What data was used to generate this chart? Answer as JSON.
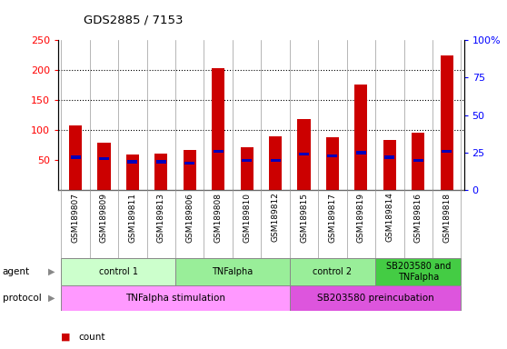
{
  "title": "GDS2885 / 7153",
  "samples": [
    "GSM189807",
    "GSM189809",
    "GSM189811",
    "GSM189813",
    "GSM189806",
    "GSM189808",
    "GSM189810",
    "GSM189812",
    "GSM189815",
    "GSM189817",
    "GSM189819",
    "GSM189814",
    "GSM189816",
    "GSM189818"
  ],
  "count_values": [
    108,
    79,
    59,
    61,
    67,
    204,
    71,
    89,
    118,
    88,
    176,
    83,
    96,
    224
  ],
  "percentile_values": [
    22,
    21,
    19,
    19,
    18,
    26,
    20,
    20,
    24,
    23,
    25,
    22,
    20,
    26
  ],
  "ylim_left": [
    0,
    250
  ],
  "ylim_right": [
    0,
    100
  ],
  "yticks_left": [
    50,
    100,
    150,
    200,
    250
  ],
  "yticks_right": [
    0,
    25,
    50,
    75,
    100
  ],
  "count_color": "#cc0000",
  "percentile_color": "#0000bb",
  "agent_groups": [
    {
      "label": "control 1",
      "start": 0,
      "end": 3,
      "color": "#ccffcc"
    },
    {
      "label": "TNFalpha",
      "start": 4,
      "end": 7,
      "color": "#99ee99"
    },
    {
      "label": "control 2",
      "start": 8,
      "end": 10,
      "color": "#99ee99"
    },
    {
      "label": "SB203580 and\nTNFalpha",
      "start": 11,
      "end": 13,
      "color": "#44cc44"
    }
  ],
  "protocol_groups": [
    {
      "label": "TNFalpha stimulation",
      "start": 0,
      "end": 7,
      "color": "#ff99ff"
    },
    {
      "label": "SB203580 preincubation",
      "start": 8,
      "end": 13,
      "color": "#cc66cc"
    }
  ],
  "background_color": "#ffffff",
  "agent_label": "agent",
  "protocol_label": "protocol"
}
